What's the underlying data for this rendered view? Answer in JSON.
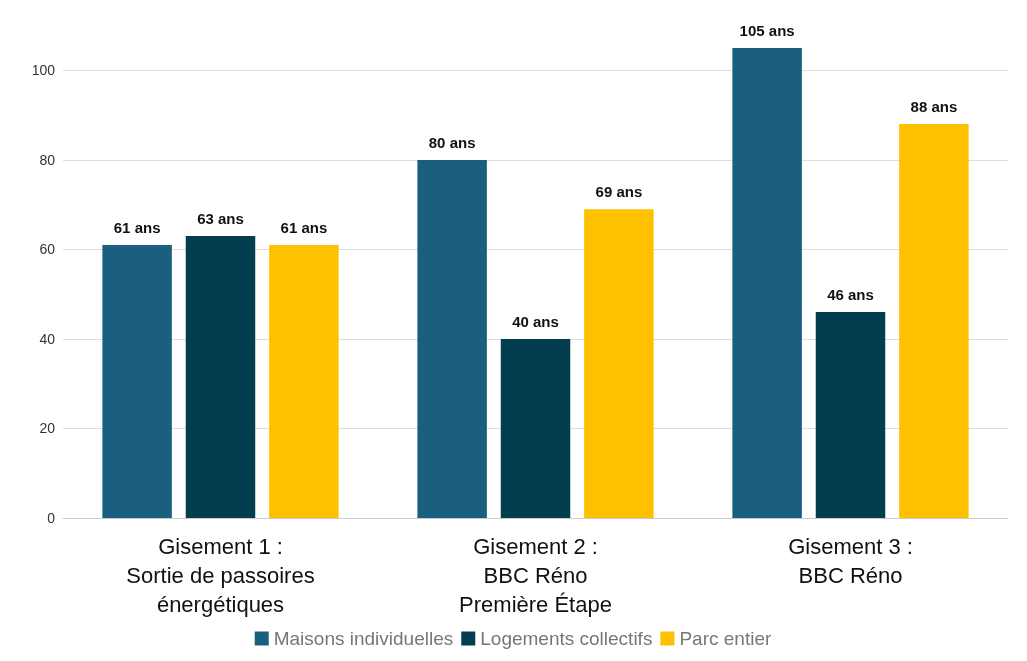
{
  "chart_data": {
    "type": "bar",
    "categories": [
      "Gisement 1 :\nSortie de passoires\nénergétiques",
      "Gisement 2 :\nBBC Réno\nPremière Étape",
      "Gisement 3 :\nBBC Réno"
    ],
    "series": [
      {
        "name": "Maisons individuelles",
        "color": "#1a5f80",
        "values": [
          61,
          80,
          105
        ],
        "value_labels": [
          "61 ans",
          "80 ans",
          "105 ans"
        ]
      },
      {
        "name": "Logements collectifs",
        "color": "#033d50",
        "values": [
          63,
          40,
          46
        ],
        "value_labels": [
          "63 ans",
          "40 ans",
          "46 ans"
        ]
      },
      {
        "name": "Parc entier",
        "color": "#ffc000",
        "values": [
          61,
          69,
          88
        ],
        "value_labels": [
          "61 ans",
          "69 ans",
          "88 ans"
        ]
      }
    ],
    "ylim": [
      0,
      105
    ],
    "yticks": [
      0,
      20,
      40,
      60,
      80,
      100
    ],
    "grid": "y",
    "legend": "bottom"
  }
}
